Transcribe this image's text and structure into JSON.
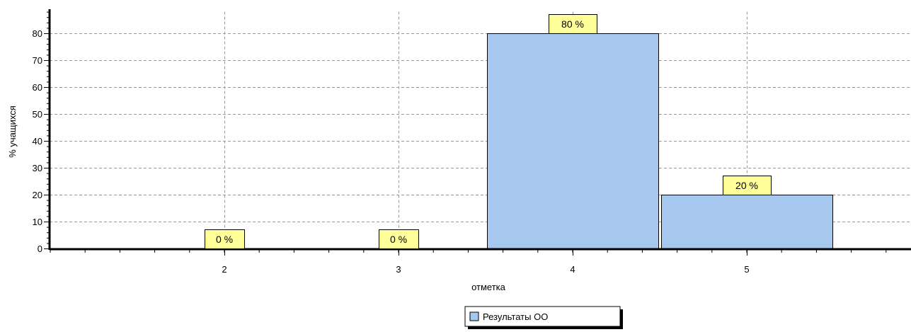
{
  "chart_data": {
    "type": "bar",
    "categories": [
      "2",
      "3",
      "4",
      "5"
    ],
    "series": [
      {
        "name": "Результаты ОО",
        "values": [
          0,
          0,
          80,
          20
        ],
        "color": "#a6c8ef"
      }
    ],
    "data_labels": [
      "0 %",
      "0 %",
      "80 %",
      "20 %"
    ],
    "xlabel": "отметка",
    "ylabel": "% учащихся",
    "yticks": [
      0,
      10,
      20,
      30,
      40,
      50,
      60,
      70,
      80
    ],
    "ylim": [
      0,
      88
    ],
    "grid": true,
    "legend_position": "bottom-center",
    "label_background": "#ffff99"
  }
}
